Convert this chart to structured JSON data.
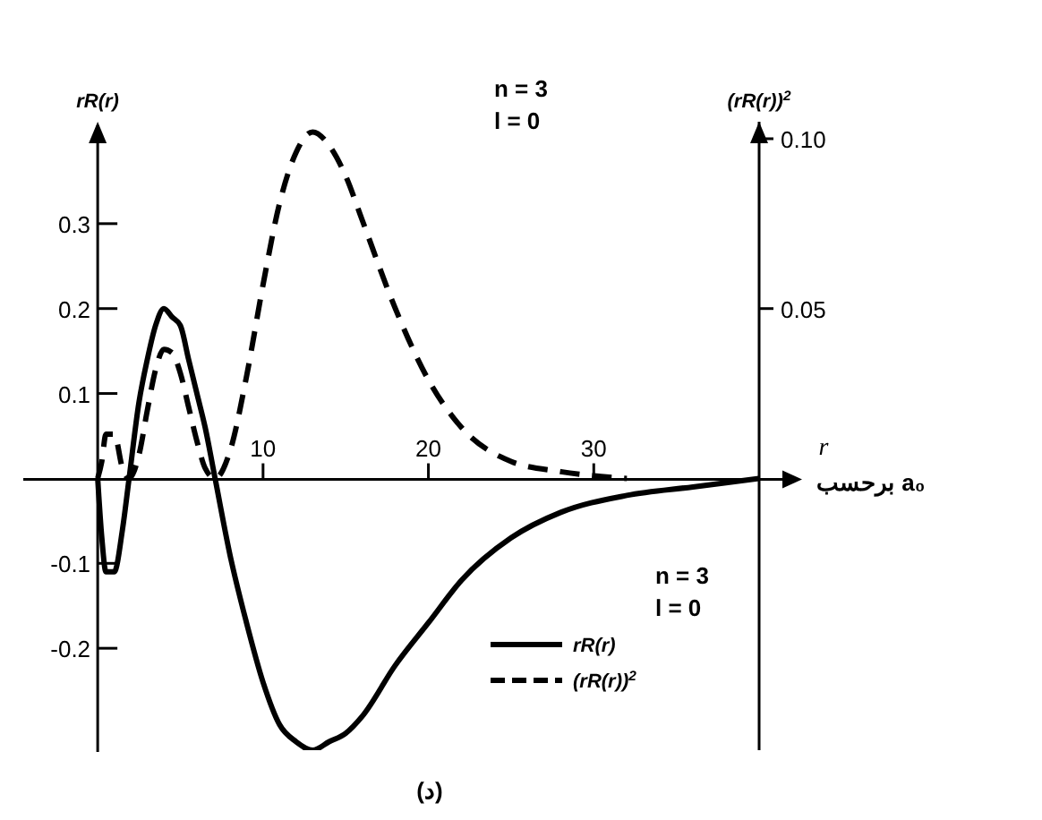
{
  "chart_data": {
    "type": "line",
    "xlabel": "r",
    "ylabel": "rR(r)",
    "y2label": "(rR(r))$^{2}$",
    "x": [
      0,
      0.25,
      0.5,
      1,
      1.5,
      1.9,
      2.5,
      3,
      3.5,
      4,
      4.5,
      5,
      5.5,
      6,
      6.5,
      7.1,
      8,
      9,
      10,
      11,
      12,
      13,
      14,
      15,
      16,
      18,
      20,
      22,
      25,
      28,
      32,
      36,
      40
    ],
    "series": [
      {
        "name": "rR(r)",
        "color": "#000000",
        "line_style": "solid",
        "values": [
          0,
          -0.07,
          -0.11,
          -0.11,
          -0.06,
          0,
          0.09,
          0.14,
          0.18,
          0.2,
          0.19,
          0.18,
          0.14,
          0.1,
          0.06,
          0,
          -0.09,
          -0.17,
          -0.24,
          -0.29,
          -0.31,
          -0.32,
          -0.31,
          -0.3,
          -0.28,
          -0.22,
          -0.17,
          -0.12,
          -0.07,
          -0.04,
          -0.02,
          -0.01,
          0
        ]
      },
      {
        "name": "(rR(r))$^{2}$",
        "color": "#000000",
        "line_style": "dashed",
        "axis": "y2",
        "values": [
          0,
          0.005,
          0.013,
          0.013,
          0.003,
          0,
          0.007,
          0.02,
          0.032,
          0.038,
          0.037,
          0.031,
          0.021,
          0.011,
          0.003,
          0,
          0.008,
          0.03,
          0.057,
          0.081,
          0.096,
          0.102,
          0.098,
          0.089,
          0.076,
          0.05,
          0.029,
          0.015,
          0.005,
          0.002,
          0,
          null,
          null
        ]
      }
    ],
    "xlim": [
      -4.5,
      40
    ],
    "xticks": [
      10,
      20,
      30
    ],
    "ylim": [
      -0.32,
      0.42
    ],
    "yticks": [
      -0.2,
      -0.1,
      0.1,
      0.2,
      0.3
    ],
    "y2lim": [
      -0.08,
      0.105
    ],
    "y2ticks": [
      0.05,
      {
        "value": 0.1,
        "label": "0.10"
      }
    ],
    "legend": "bottom right",
    "annotations": [
      "n = 3",
      "l = 0",
      "n = 3",
      "l = 0",
      "(د)",
      "برحسب a₀"
    ]
  }
}
